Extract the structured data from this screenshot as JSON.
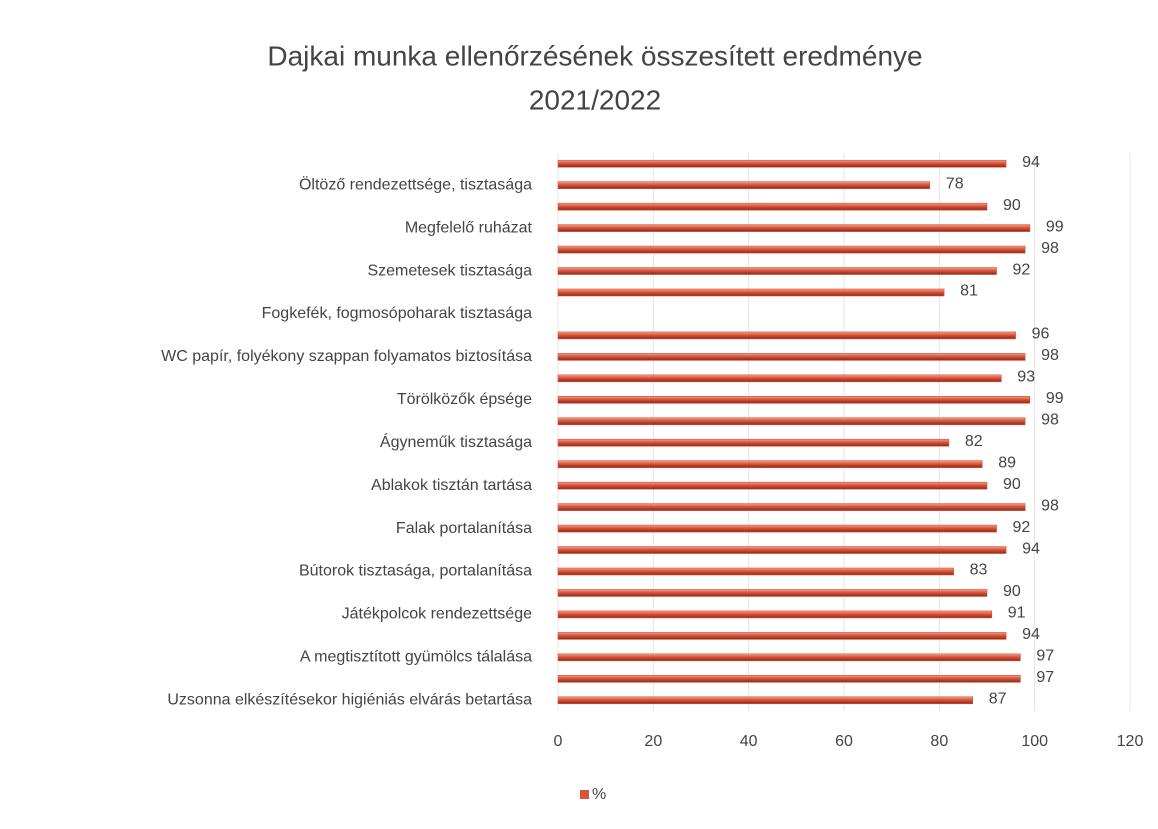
{
  "chart_data": {
    "type": "bar",
    "orientation": "horizontal",
    "title": [
      "Dajkai munka ellenőrzésének összesített eredménye",
      "2021/2022"
    ],
    "categories": [
      null,
      "Öltöző rendezettsége, tisztasága",
      null,
      "Megfelelő ruházat",
      null,
      "Szemetesek tisztasága",
      null,
      "Fogkefék, fogmosópoharak tisztasága",
      null,
      "WC papír, folyékony szappan folyamatos biztosítása",
      null,
      "Törölközők épsége",
      null,
      "Ágyneműk tisztasága",
      null,
      "Ablakok tisztán tartása",
      null,
      "Falak portalanítása",
      null,
      "Bútorok tisztasága, portalanítása",
      null,
      "Játékpolcok rendezettsége",
      null,
      "A  megtisztított gyümölcs tálalása",
      null,
      "Uzsonna elkészítésekor higiéniás elvárás betartása"
    ],
    "series": [
      {
        "name": "%",
        "color": "#d9533a",
        "values": [
          94,
          78,
          90,
          99,
          98,
          92,
          81,
          null,
          96,
          98,
          93,
          99,
          98,
          82,
          89,
          90,
          98,
          92,
          94,
          83,
          90,
          91,
          94,
          97,
          97,
          87
        ]
      }
    ],
    "xlim": [
      0,
      120
    ],
    "xticks": [
      0,
      20,
      40,
      60,
      80,
      100,
      120
    ],
    "grid": true,
    "legend": "bottom"
  }
}
